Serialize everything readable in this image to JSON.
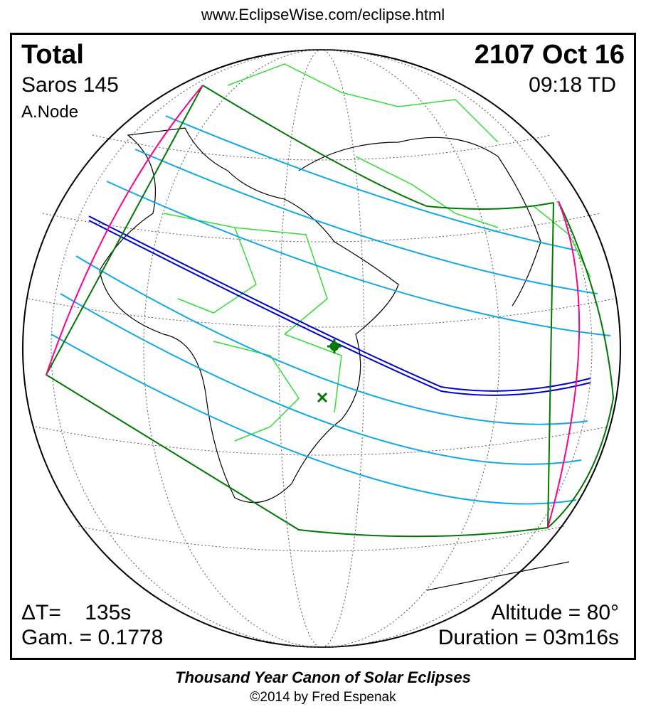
{
  "url": "www.EclipseWise.com/eclipse.html",
  "eclipse": {
    "type": "Total",
    "date": "2107 Oct 16",
    "saros": "Saros 145",
    "time": "09:18 TD",
    "node": "A.Node",
    "delta_t": "ΔT=    135s",
    "gamma": "Gam. = 0.1778",
    "altitude": "Altitude = 80°",
    "duration": "Duration = 03m16s"
  },
  "footer": {
    "canon": "Thousand Year Canon of Solar Eclipses",
    "copyright": "©2014 by Fred Espenak"
  },
  "colors": {
    "central_line": "#0000cc",
    "umbral_lines": "#10a8e8",
    "penumbral_limit": "#007700",
    "rise_set": "#ff0090",
    "borders": "#33dd33"
  }
}
